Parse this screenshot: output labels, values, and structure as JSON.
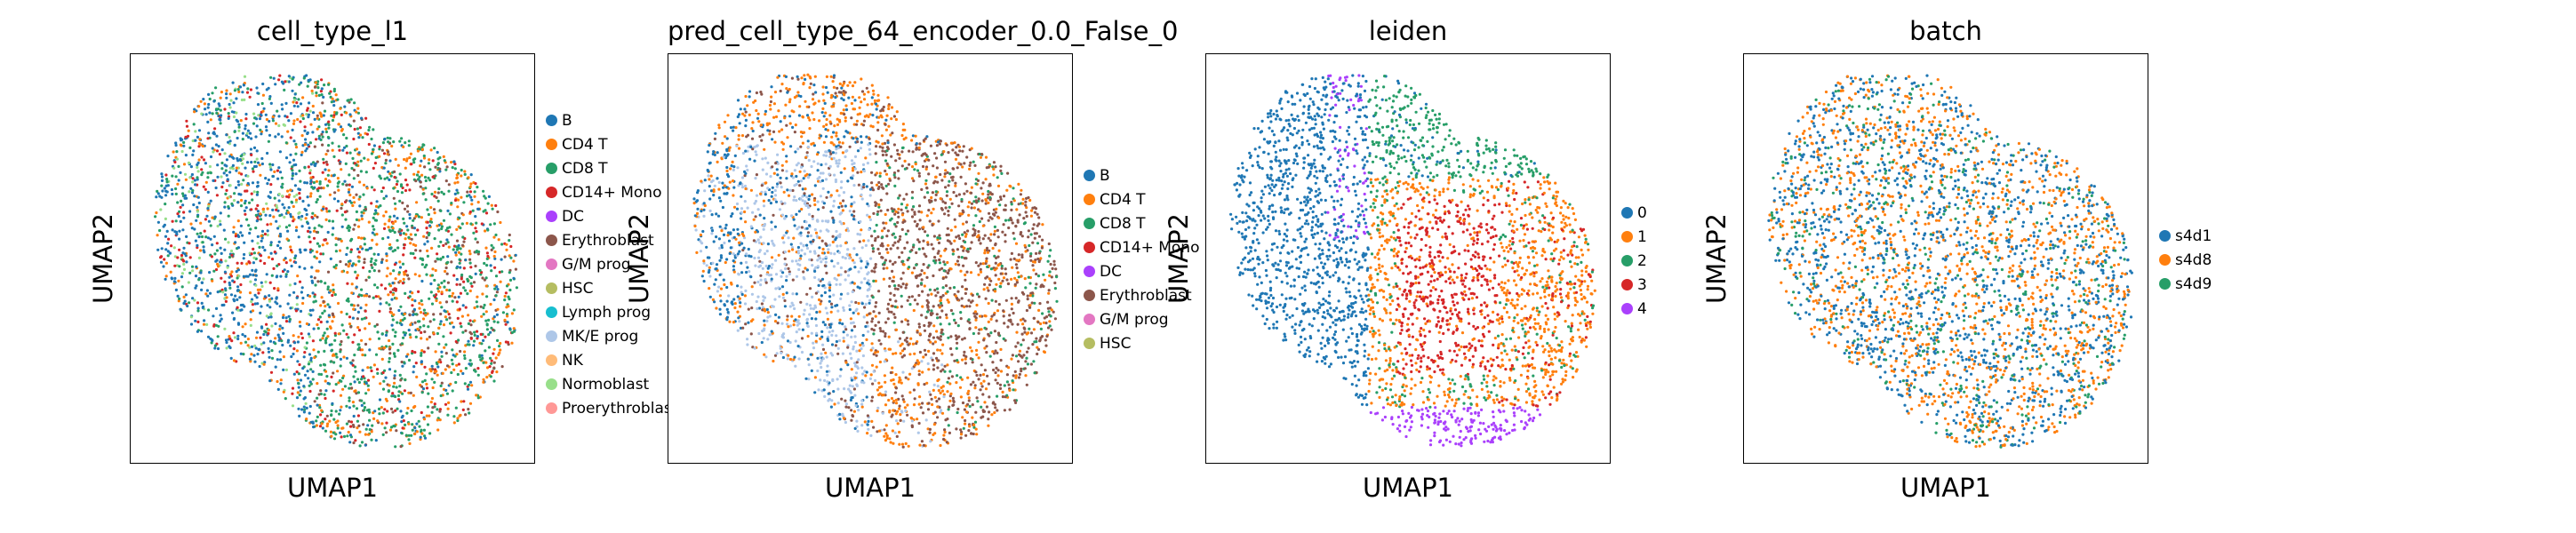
{
  "palette": {
    "B": "#1f77b4",
    "CD4 T": "#ff7f0e",
    "CD8 T": "#279e68",
    "CD14+ Mono": "#d62728",
    "DC": "#aa40fc",
    "Erythroblast": "#8c564b",
    "G/M prog": "#e377c2",
    "HSC": "#b5bd61",
    "Lymph prog": "#17becf",
    "MK/E prog": "#aec7e8",
    "NK": "#ffbb78",
    "Normoblast": "#98df8a",
    "Proerythroblast": "#ff9896",
    "0": "#1f77b4",
    "1": "#ff7f0e",
    "2": "#279e68",
    "3": "#d62728",
    "4": "#aa40fc",
    "s4d1": "#1f77b4",
    "s4d8": "#ff7f0e",
    "s4d9": "#279e68"
  },
  "chart_data": [
    {
      "type": "scatter",
      "title": "cell_type_l1",
      "xlabel": "UMAP1",
      "ylabel": "UMAP2",
      "legend": [
        "B",
        "CD4 T",
        "CD8 T",
        "CD14+ Mono",
        "DC",
        "Erythroblast",
        "G/M prog",
        "HSC",
        "Lymph prog",
        "MK/E prog",
        "NK",
        "Normoblast",
        "Proerythroblast"
      ],
      "legend_placement": "right outside",
      "grid": false
    },
    {
      "type": "scatter",
      "title": "pred_cell_type_64_encoder_0.0_False_0",
      "xlabel": "UMAP1",
      "ylabel": "UMAP2",
      "legend": [
        "B",
        "CD4 T",
        "CD8 T",
        "CD14+ Mono",
        "DC",
        "Erythroblast",
        "G/M prog",
        "HSC"
      ],
      "legend_placement": "right outside",
      "grid": false
    },
    {
      "type": "scatter",
      "title": "leiden",
      "xlabel": "UMAP1",
      "ylabel": "UMAP2",
      "legend": [
        "0",
        "1",
        "2",
        "3",
        "4"
      ],
      "legend_placement": "right outside",
      "grid": false
    },
    {
      "type": "scatter",
      "title": "batch",
      "xlabel": "UMAP1",
      "ylabel": "UMAP2",
      "legend": [
        "s4d1",
        "s4d8",
        "s4d9"
      ],
      "legend_placement": "right outside",
      "grid": false
    }
  ]
}
